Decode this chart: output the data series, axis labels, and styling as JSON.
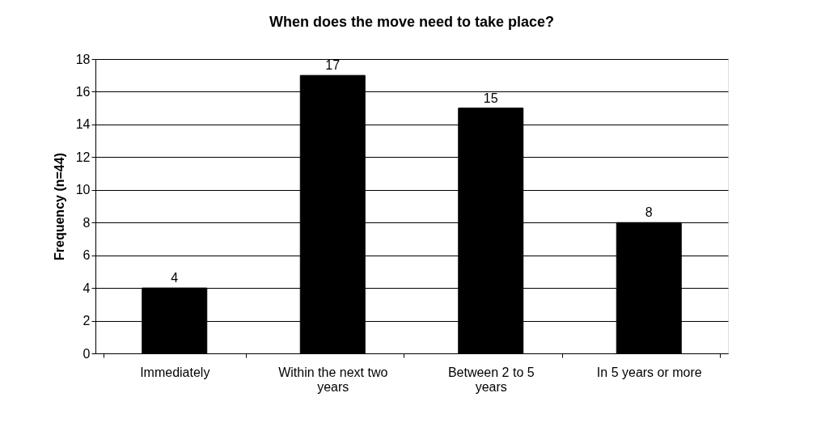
{
  "chart_data": {
    "type": "bar",
    "title": "When does the move need to take place?",
    "ylabel": "Frequency (n=44)",
    "categories": [
      "Immediately",
      "Within the next two years",
      "Between 2 to 5 years",
      "In 5 years or more"
    ],
    "values": [
      4,
      17,
      15,
      8
    ],
    "color": "#000000",
    "ylim": [
      0,
      18
    ],
    "yticks": [
      0,
      2,
      4,
      6,
      8,
      10,
      12,
      14,
      16,
      18
    ],
    "grid": "y",
    "data_labels": true
  }
}
